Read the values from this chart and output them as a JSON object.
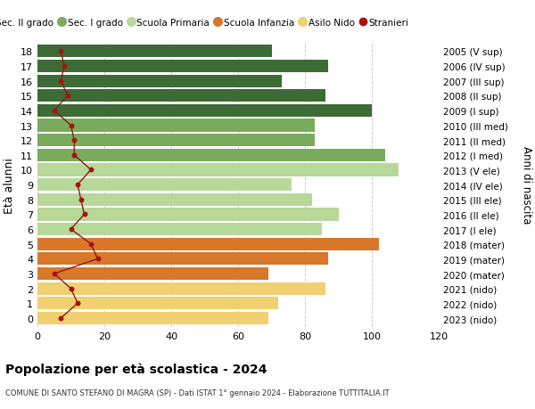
{
  "ages": [
    18,
    17,
    16,
    15,
    14,
    13,
    12,
    11,
    10,
    9,
    8,
    7,
    6,
    5,
    4,
    3,
    2,
    1,
    0
  ],
  "anni_nascita": [
    "2005 (V sup)",
    "2006 (IV sup)",
    "2007 (III sup)",
    "2008 (II sup)",
    "2009 (I sup)",
    "2010 (III med)",
    "2011 (II med)",
    "2012 (I med)",
    "2013 (V ele)",
    "2014 (IV ele)",
    "2015 (III ele)",
    "2016 (II ele)",
    "2017 (I ele)",
    "2018 (mater)",
    "2019 (mater)",
    "2020 (mater)",
    "2021 (nido)",
    "2022 (nido)",
    "2023 (nido)"
  ],
  "bar_values": [
    70,
    87,
    73,
    86,
    100,
    83,
    83,
    104,
    108,
    76,
    82,
    90,
    85,
    102,
    87,
    69,
    86,
    72,
    69
  ],
  "bar_colors": [
    "#3d6b35",
    "#3d6b35",
    "#3d6b35",
    "#3d6b35",
    "#3d6b35",
    "#7aab5c",
    "#7aab5c",
    "#7aab5c",
    "#b8d89a",
    "#b8d89a",
    "#b8d89a",
    "#b8d89a",
    "#b8d89a",
    "#d9782a",
    "#d9782a",
    "#d9782a",
    "#f0d070",
    "#f0d070",
    "#f0d070"
  ],
  "stranieri_values": [
    7,
    8,
    7,
    9,
    5,
    10,
    11,
    11,
    16,
    12,
    13,
    14,
    10,
    16,
    18,
    5,
    10,
    12,
    7
  ],
  "legend_labels": [
    "Sec. II grado",
    "Sec. I grado",
    "Scuola Primaria",
    "Scuola Infanzia",
    "Asilo Nido",
    "Stranieri"
  ],
  "legend_colors": [
    "#3d6b35",
    "#7aab5c",
    "#b8d89a",
    "#d9782a",
    "#f0d070",
    "#aa1111"
  ],
  "ylabel": "Età alunni",
  "right_label": "Anni di nascita",
  "title": "Popolazione per età scolastica - 2024",
  "subtitle": "COMUNE DI SANTO STEFANO DI MAGRA (SP) - Dati ISTAT 1° gennaio 2024 - Elaborazione TUTTITALIA.IT",
  "xlim": [
    0,
    120
  ],
  "xticks": [
    0,
    20,
    40,
    60,
    80,
    100,
    120
  ],
  "bg_color": "#ffffff",
  "grid_color": "#cccccc",
  "bar_height": 0.85
}
